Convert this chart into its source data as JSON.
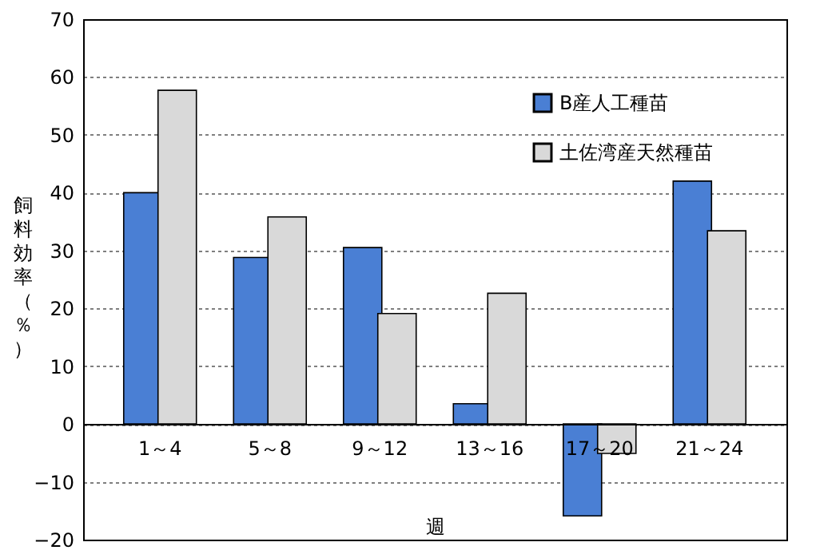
{
  "chart_data": {
    "type": "bar",
    "xlabel": "週",
    "ylabel": "飼料効率（％）",
    "categories": [
      "1～4",
      "5～8",
      "9～12",
      "13～16",
      "17～20",
      "21～24"
    ],
    "series": [
      {
        "name": "B産人工種苗",
        "color": "#4a7fd4",
        "values": [
          40,
          28.8,
          30.5,
          3.5,
          -15.9,
          42
        ]
      },
      {
        "name": "土佐湾産天然種苗",
        "color": "#d9d9d9",
        "values": [
          57.7,
          35.8,
          19.1,
          22.6,
          -5.1,
          33.4
        ]
      }
    ],
    "ylim": [
      -20,
      70
    ],
    "yticks": [
      -20,
      -10,
      0,
      10,
      20,
      30,
      40,
      50,
      60,
      70
    ],
    "grid": "y",
    "legend": "top right"
  }
}
